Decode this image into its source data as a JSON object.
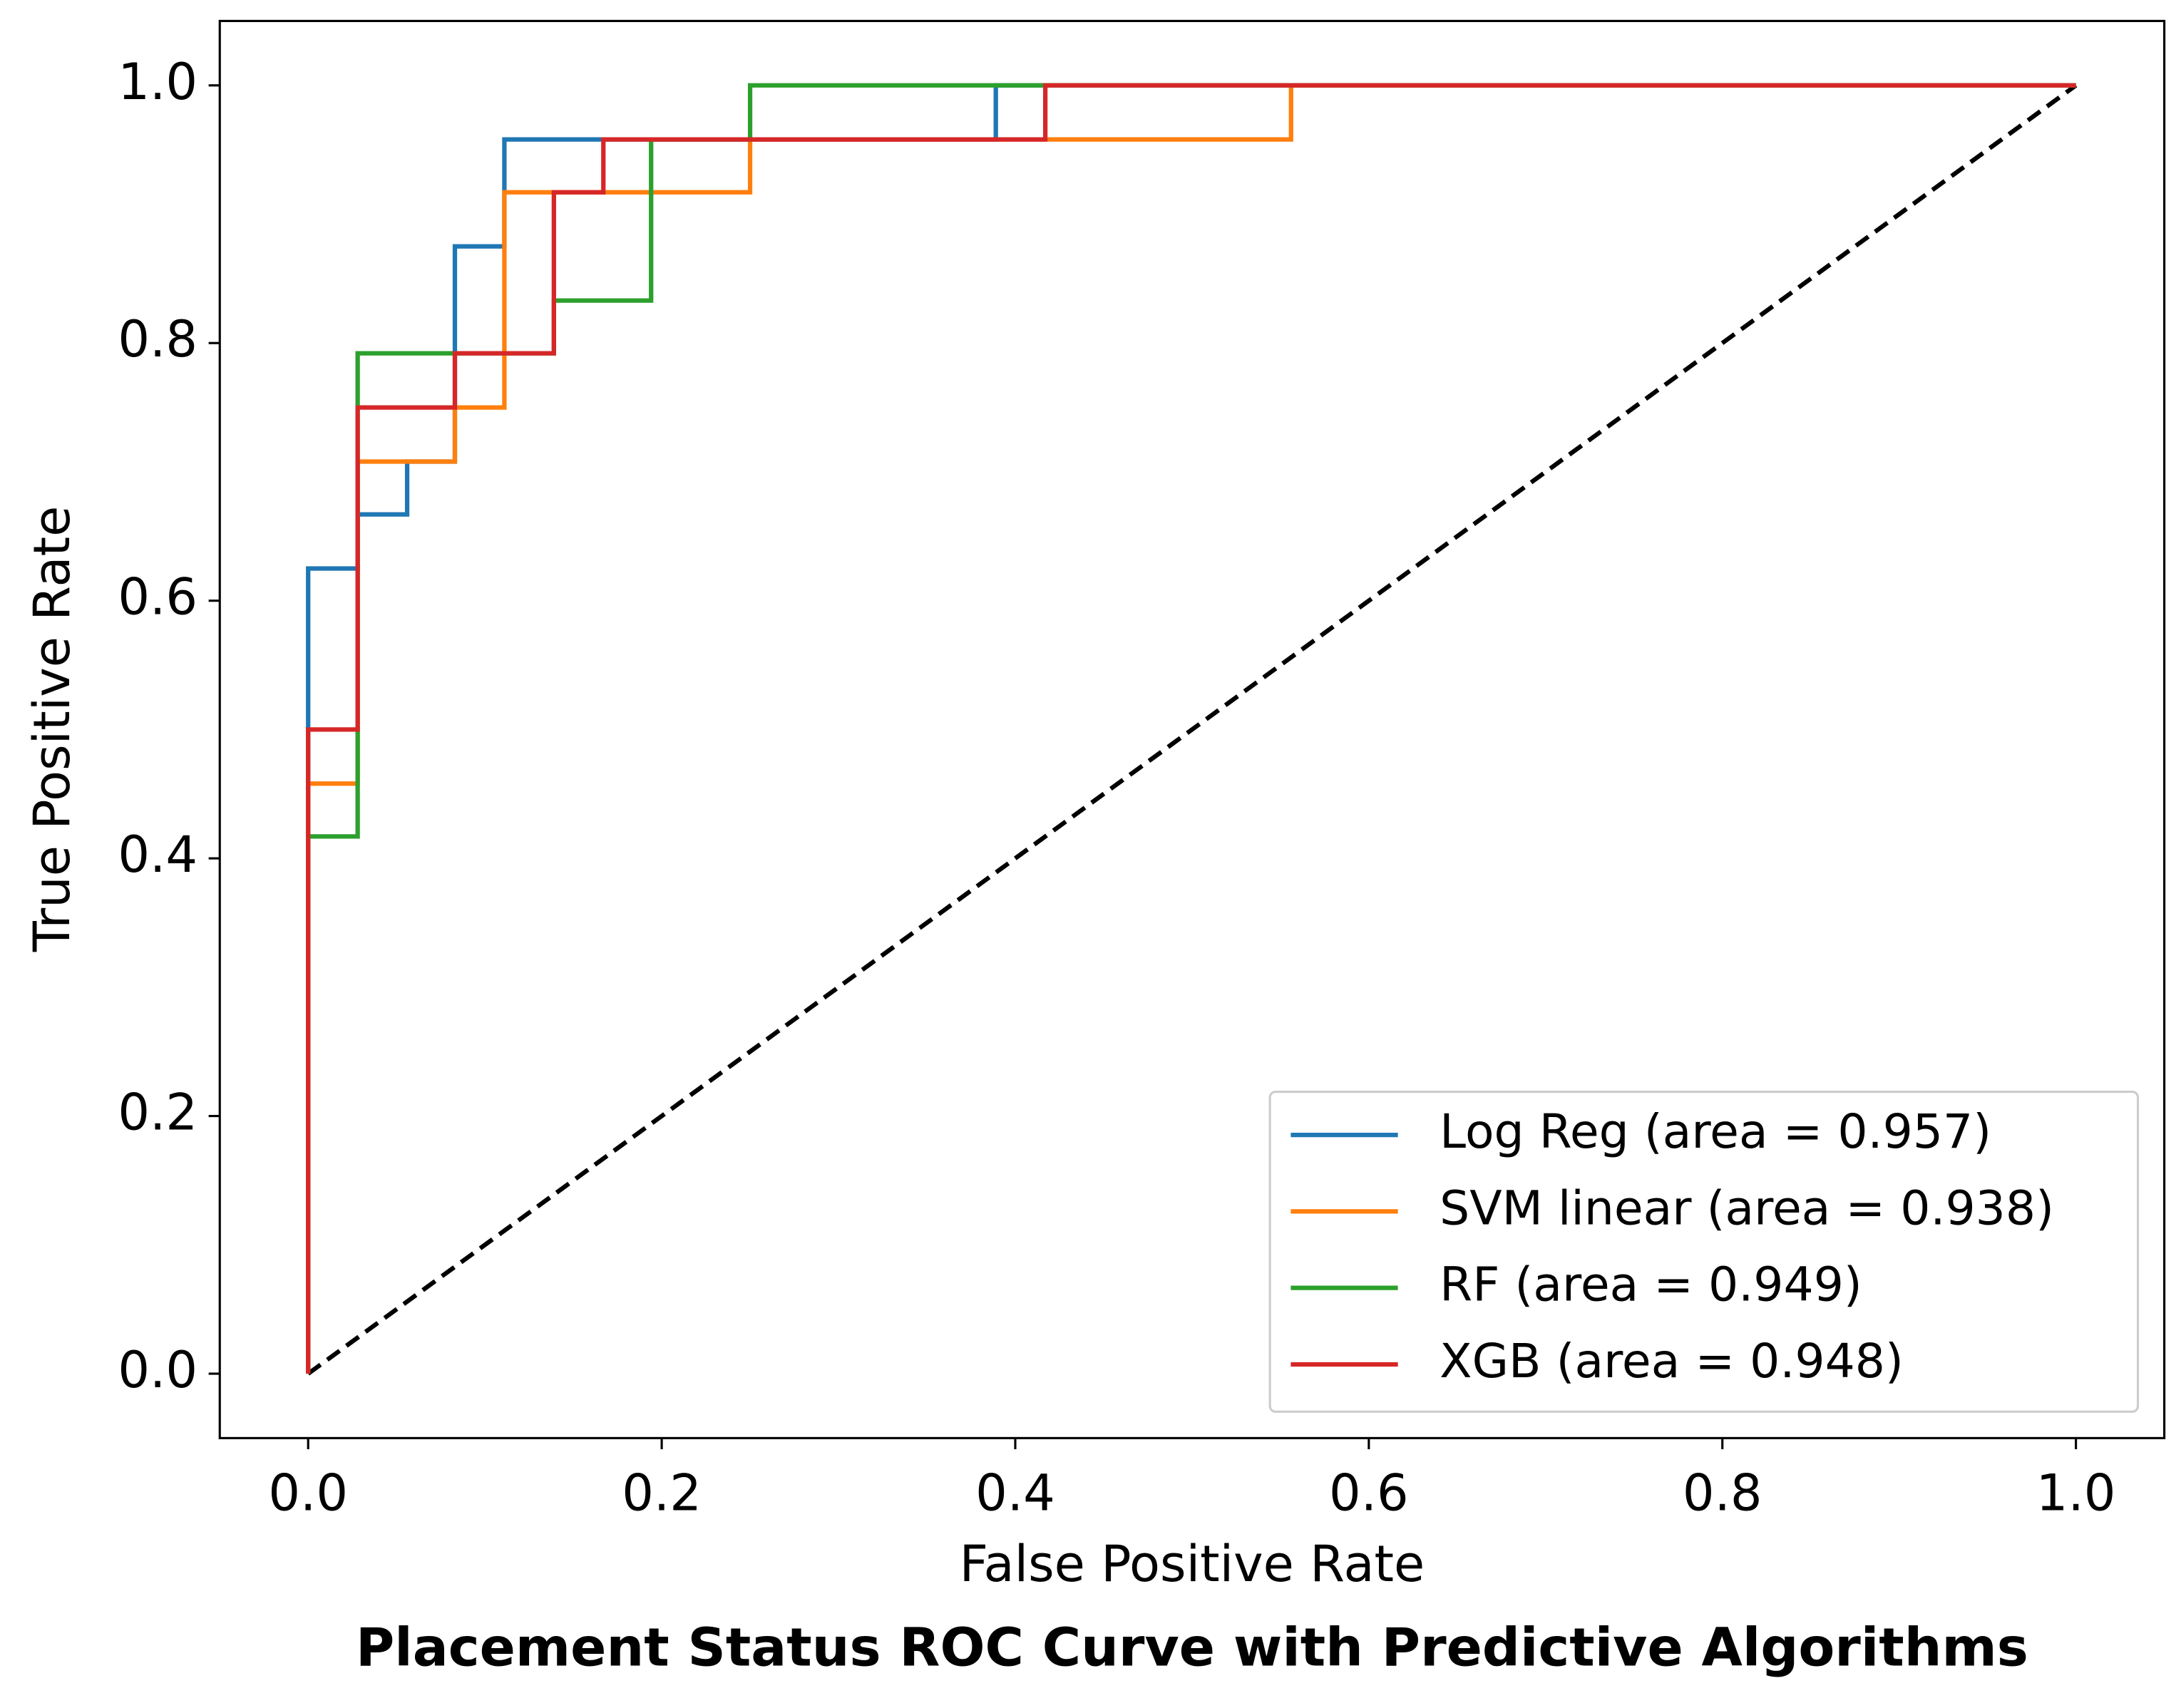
{
  "chart_data": {
    "type": "line",
    "title": "Placement Status ROC Curve with Predictive Algorithms",
    "x_label": "False Positive Rate",
    "y_label": "True Positive Rate",
    "xlim": [
      -0.05,
      1.05
    ],
    "ylim": [
      -0.05,
      1.05
    ],
    "xticks": [
      {
        "value": 0,
        "label": "0.0"
      },
      0.2,
      0.4,
      0.6,
      0.8,
      {
        "value": 1,
        "label": "1.0"
      }
    ],
    "yticks": [
      {
        "value": 0,
        "label": "0.0"
      },
      0.2,
      0.4,
      0.6,
      0.8,
      {
        "value": 1,
        "label": "1.0"
      }
    ],
    "legend": "lower right",
    "series": [
      {
        "name": "Log Reg (area = 0.957)",
        "color": "#1f77b4",
        "x": [
          0,
          0,
          0.028,
          0.028,
          0.056,
          0.056,
          0.083,
          0.083,
          0.111,
          0.111,
          0.389,
          0.389,
          1
        ],
        "values": [
          0,
          0.625,
          0.625,
          0.667,
          0.667,
          0.708,
          0.708,
          0.875,
          0.875,
          0.958,
          0.958,
          1,
          1
        ]
      },
      {
        "name": "SVM linear (area = 0.938)",
        "color": "#ff7f0e",
        "x": [
          0,
          0,
          0.028,
          0.028,
          0.083,
          0.083,
          0.111,
          0.111,
          0.25,
          0.25,
          0.556,
          0.556,
          1
        ],
        "values": [
          0,
          0.458,
          0.458,
          0.708,
          0.708,
          0.75,
          0.75,
          0.917,
          0.917,
          0.958,
          0.958,
          1,
          1
        ]
      },
      {
        "name": "RF (area = 0.949)",
        "color": "#2ca02c",
        "x": [
          0,
          0,
          0.028,
          0.028,
          0.139,
          0.139,
          0.194,
          0.194,
          0.25,
          0.25,
          1
        ],
        "values": [
          0,
          0.417,
          0.417,
          0.792,
          0.792,
          0.833,
          0.833,
          0.958,
          0.958,
          1,
          1
        ]
      },
      {
        "name": "XGB (area = 0.948)",
        "color": "#d62728",
        "x": [
          0,
          0,
          0.028,
          0.028,
          0.083,
          0.083,
          0.139,
          0.139,
          0.167,
          0.167,
          0.417,
          0.417,
          1
        ],
        "values": [
          0,
          0.5,
          0.5,
          0.75,
          0.75,
          0.792,
          0.792,
          0.917,
          0.917,
          0.958,
          0.958,
          1,
          1
        ]
      }
    ],
    "diagonal": {
      "x": [
        0,
        1
      ],
      "values": [
        0,
        1
      ],
      "color": "#000000"
    }
  }
}
